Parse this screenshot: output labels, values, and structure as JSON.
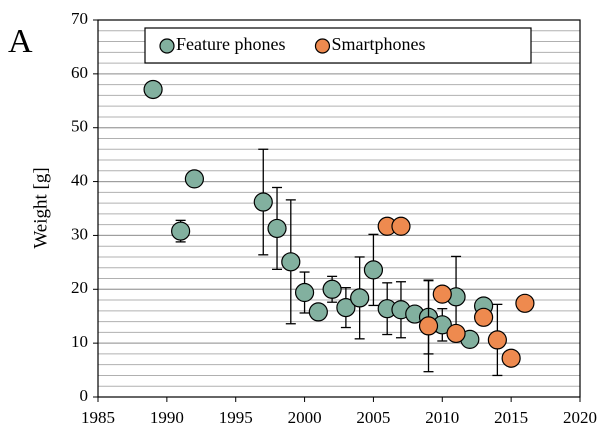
{
  "panel_label": "A",
  "chart_data": {
    "type": "scatter",
    "y_label": "Weight [g]",
    "xlim": [
      1985,
      2020
    ],
    "xticks": [
      1985,
      1990,
      1995,
      2000,
      2005,
      2010,
      2015,
      2020
    ],
    "ylim": [
      0,
      70
    ],
    "yticks": [
      0,
      10,
      20,
      30,
      40,
      50,
      60,
      70
    ],
    "grid": true,
    "minor_grid_step": 2,
    "legend": "top",
    "series": [
      {
        "name": "Feature phones",
        "color": "#82b09f",
        "x": [
          1989,
          1991,
          1992,
          1997,
          1998,
          1999,
          2000,
          2001,
          2002,
          2003,
          2004,
          2005,
          2006,
          2007,
          2008,
          2009,
          2010,
          2011,
          2012,
          2013
        ],
        "values": [
          57.1,
          30.8,
          40.5,
          36.2,
          31.3,
          25.1,
          19.4,
          15.8,
          20.0,
          16.6,
          18.4,
          23.6,
          16.4,
          16.2,
          15.4,
          14.8,
          13.4,
          18.6,
          10.7,
          16.9
        ],
        "errors": [
          null,
          2.0,
          null,
          9.8,
          7.6,
          11.5,
          3.8,
          null,
          2.4,
          3.7,
          7.6,
          6.6,
          4.8,
          5.2,
          null,
          6.8,
          3.0,
          7.5,
          null,
          null
        ]
      },
      {
        "name": "Smartphones",
        "color": "#ee8a4f",
        "x": [
          2006,
          2007,
          2009,
          2010,
          2011,
          2013,
          2014,
          2015,
          2016
        ],
        "values": [
          31.7,
          31.7,
          13.2,
          19.1,
          11.8,
          14.8,
          10.6,
          7.2,
          17.4
        ],
        "errors": [
          null,
          null,
          8.5,
          null,
          null,
          null,
          6.6,
          null,
          null
        ]
      }
    ]
  }
}
